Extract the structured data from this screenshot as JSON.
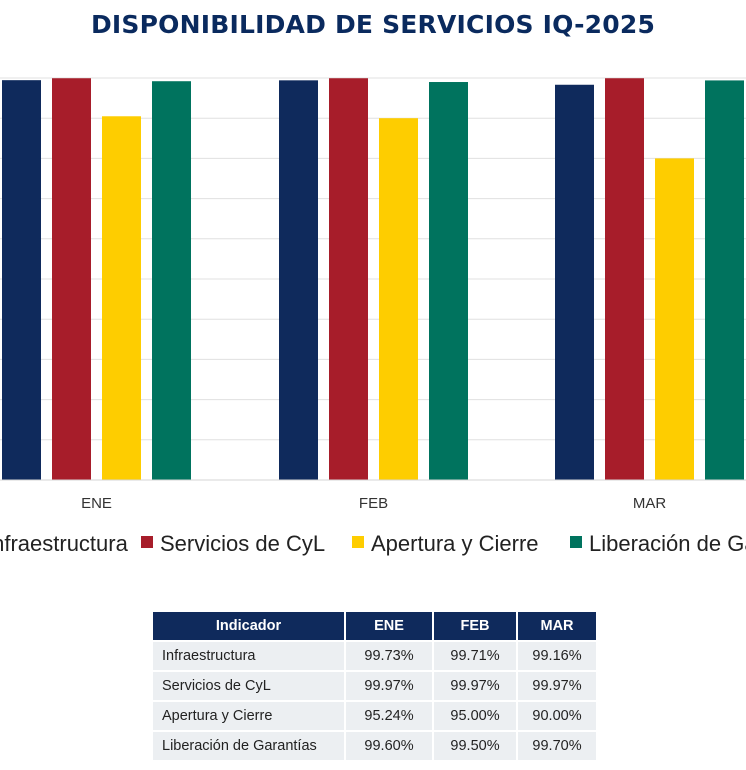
{
  "title": "DISPONIBILIDAD DE SERVICIOS IQ-2025",
  "colors": {
    "navy": "#0f2a5c",
    "red": "#a71d2a",
    "yellow": "#fecd00",
    "teal": "#00735e",
    "grid": "#e0e0e0",
    "table_header": "#0f2a5c",
    "table_cell": "#eceff2"
  },
  "chart_data": {
    "type": "bar",
    "title": "DISPONIBILIDAD DE SERVICIOS IQ-2025",
    "categories": [
      "ENE",
      "FEB",
      "MAR"
    ],
    "series": [
      {
        "name": "Infraestructura",
        "color": "#0f2a5c",
        "values": [
          99.73,
          99.71,
          99.16
        ]
      },
      {
        "name": "Servicios de CyL",
        "color": "#a71d2a",
        "values": [
          99.97,
          99.97,
          99.97
        ]
      },
      {
        "name": "Apertura y Cierre",
        "color": "#fecd00",
        "values": [
          95.24,
          95.0,
          90.0
        ]
      },
      {
        "name": "Liberación de Garantías",
        "color": "#00735e",
        "values": [
          99.6,
          99.5,
          99.7
        ]
      }
    ],
    "ylim": [
      50,
      100
    ],
    "grid": true,
    "legend": "bottom",
    "xlabel": "",
    "ylabel": ""
  },
  "table": {
    "headers": [
      "Indicador",
      "ENE",
      "FEB",
      "MAR"
    ],
    "rows": [
      [
        "Infraestructura",
        "99.73%",
        "99.71%",
        "99.16%"
      ],
      [
        "Servicios de CyL",
        "99.97%",
        "99.97%",
        "99.97%"
      ],
      [
        "Apertura y Cierre",
        "95.24%",
        "95.00%",
        "90.00%"
      ],
      [
        "Liberación de Garantías",
        "99.60%",
        "99.50%",
        "99.70%"
      ]
    ]
  }
}
